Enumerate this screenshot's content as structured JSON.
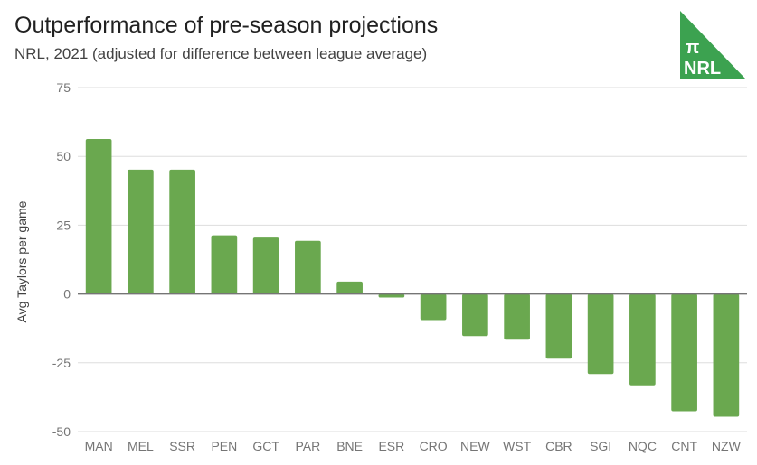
{
  "header": {
    "title": "Outperformance of pre-season projections",
    "subtitle": "NRL, 2021 (adjusted for difference between league average)"
  },
  "logo": {
    "icon": "pi-nrl-logo",
    "symbol": "π",
    "text": "NRL",
    "color": "#3ca250"
  },
  "chart_data": {
    "type": "bar",
    "title": "Outperformance of pre-season projections",
    "subtitle": "NRL, 2021 (adjusted for difference between league average)",
    "xlabel": "",
    "ylabel": "Avg Taylors per game",
    "ylim": [
      -50,
      75
    ],
    "yticks": [
      75,
      50,
      25,
      0,
      -25,
      -50
    ],
    "grid": true,
    "legend": "none",
    "bar_color": "#6aa84f",
    "categories": [
      "MAN",
      "MEL",
      "SSR",
      "PEN",
      "GCT",
      "PAR",
      "BNE",
      "ESR",
      "CRO",
      "NEW",
      "WST",
      "CBR",
      "SGI",
      "NQC",
      "CNT",
      "NZW"
    ],
    "values": [
      56.3,
      45.2,
      45.2,
      21.3,
      20.5,
      19.3,
      4.5,
      -1.3,
      -9.5,
      -15.3,
      -16.6,
      -23.5,
      -29.1,
      -33.2,
      -42.6,
      -44.6
    ]
  }
}
